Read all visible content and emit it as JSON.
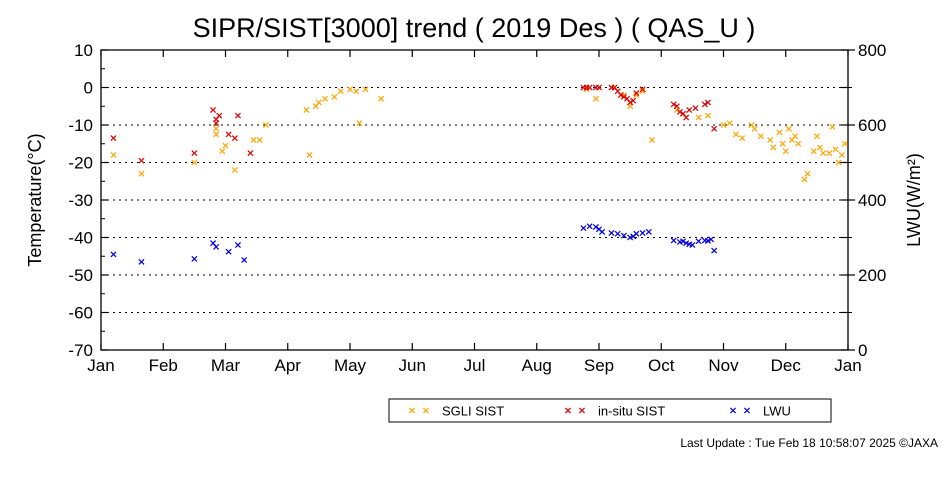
{
  "chart_data": {
    "type": "scatter",
    "title": "SIPR/SIST[3000] trend ( 2019 Des ) ( QAS_U )",
    "ylabel_left": "Temperature(°C)",
    "ylabel_right": "LWU(W/m²)",
    "ylim_left": [
      -70,
      10
    ],
    "ylim_right": [
      0,
      800
    ],
    "left_ticks": [
      "10",
      "0",
      "-10",
      "-20",
      "-30",
      "-40",
      "-50",
      "-60",
      "-70"
    ],
    "right_ticks": [
      "800",
      "600",
      "400",
      "200",
      "0"
    ],
    "grid_y_dotted": [
      0,
      -10,
      -20,
      -30,
      -40,
      -50,
      -60
    ],
    "x_domain_months": [
      0,
      12
    ],
    "months": [
      "Jan",
      "Feb",
      "Mar",
      "Apr",
      "May",
      "Jun",
      "Jul",
      "Aug",
      "Sep",
      "Oct",
      "Nov",
      "Dec",
      "Jan"
    ],
    "legend_placement": "bottom",
    "series": [
      {
        "name": "SGLI SIST",
        "color": "#ffa500",
        "axis": "left",
        "points": [
          [
            0.2,
            -18
          ],
          [
            0.65,
            -23
          ],
          [
            1.5,
            -20
          ],
          [
            1.85,
            -12.5
          ],
          [
            1.85,
            -11
          ],
          [
            1.95,
            -17
          ],
          [
            2.0,
            -15.5
          ],
          [
            2.15,
            -22
          ],
          [
            2.45,
            -14
          ],
          [
            2.55,
            -14
          ],
          [
            2.65,
            -10
          ],
          [
            3.3,
            -6
          ],
          [
            3.45,
            -5
          ],
          [
            3.5,
            -4
          ],
          [
            3.6,
            -3
          ],
          [
            3.75,
            -2.5
          ],
          [
            3.85,
            -1
          ],
          [
            4.0,
            -0.5
          ],
          [
            4.1,
            -1
          ],
          [
            4.15,
            -9.5
          ],
          [
            4.25,
            -0.5
          ],
          [
            4.5,
            -3
          ],
          [
            3.35,
            -18
          ],
          [
            7.8,
            -0.5
          ],
          [
            7.95,
            -3
          ],
          [
            8.25,
            0
          ],
          [
            8.4,
            -2
          ],
          [
            8.5,
            -5
          ],
          [
            8.6,
            -2
          ],
          [
            8.7,
            -1
          ],
          [
            8.85,
            -14
          ],
          [
            9.25,
            -6
          ],
          [
            9.35,
            -7
          ],
          [
            9.6,
            -8
          ],
          [
            9.75,
            -7.5
          ],
          [
            10.0,
            -10
          ],
          [
            10.1,
            -9.5
          ],
          [
            10.2,
            -12.5
          ],
          [
            10.3,
            -13.5
          ],
          [
            10.45,
            -10
          ],
          [
            10.5,
            -11
          ],
          [
            10.6,
            -13
          ],
          [
            10.75,
            -14
          ],
          [
            10.8,
            -16
          ],
          [
            10.9,
            -12
          ],
          [
            10.95,
            -15
          ],
          [
            11.0,
            -17
          ],
          [
            11.05,
            -11
          ],
          [
            11.1,
            -14
          ],
          [
            11.15,
            -13
          ],
          [
            11.2,
            -15
          ],
          [
            11.3,
            -24.5
          ],
          [
            11.35,
            -23
          ],
          [
            11.45,
            -17
          ],
          [
            11.5,
            -13
          ],
          [
            11.55,
            -16
          ],
          [
            11.6,
            -17.5
          ],
          [
            11.7,
            -17.5
          ],
          [
            11.75,
            -10.5
          ],
          [
            11.8,
            -16.5
          ],
          [
            11.85,
            -20
          ],
          [
            11.9,
            -18
          ],
          [
            11.95,
            -15
          ]
        ]
      },
      {
        "name": "in-situ SIST",
        "color": "#e00000",
        "axis": "left",
        "points": [
          [
            0.2,
            -13.5
          ],
          [
            0.65,
            -19.5
          ],
          [
            1.5,
            -17.5
          ],
          [
            1.8,
            -6
          ],
          [
            1.85,
            -8.5
          ],
          [
            1.85,
            -9.5
          ],
          [
            1.9,
            -7.5
          ],
          [
            2.05,
            -12.5
          ],
          [
            2.15,
            -13.5
          ],
          [
            2.2,
            -7.5
          ],
          [
            2.4,
            -17.5
          ],
          [
            7.75,
            0
          ],
          [
            7.8,
            0
          ],
          [
            7.85,
            0
          ],
          [
            7.95,
            0
          ],
          [
            8.0,
            0
          ],
          [
            8.2,
            0
          ],
          [
            8.25,
            0
          ],
          [
            8.3,
            -1
          ],
          [
            8.35,
            -2
          ],
          [
            8.4,
            -2.5
          ],
          [
            8.45,
            -3
          ],
          [
            8.5,
            -4
          ],
          [
            8.55,
            -3.5
          ],
          [
            8.6,
            -1.5
          ],
          [
            8.7,
            -0.5
          ],
          [
            9.2,
            -4.5
          ],
          [
            9.25,
            -5
          ],
          [
            9.3,
            -6.5
          ],
          [
            9.35,
            -7
          ],
          [
            9.4,
            -8
          ],
          [
            9.45,
            -6
          ],
          [
            9.55,
            -5.5
          ],
          [
            9.7,
            -4.5
          ],
          [
            9.75,
            -4
          ],
          [
            9.85,
            -11
          ]
        ]
      },
      {
        "name": "LWU",
        "color": "#0000e0",
        "axis": "right",
        "points": [
          [
            0.2,
            255
          ],
          [
            0.65,
            235
          ],
          [
            1.5,
            243
          ],
          [
            1.8,
            285
          ],
          [
            1.85,
            275
          ],
          [
            2.05,
            262
          ],
          [
            2.2,
            280
          ],
          [
            2.3,
            240
          ],
          [
            7.75,
            325
          ],
          [
            7.85,
            330
          ],
          [
            7.95,
            328
          ],
          [
            8.0,
            322
          ],
          [
            8.05,
            315
          ],
          [
            8.2,
            312
          ],
          [
            8.3,
            310
          ],
          [
            8.4,
            305
          ],
          [
            8.5,
            300
          ],
          [
            8.55,
            303
          ],
          [
            8.6,
            310
          ],
          [
            8.7,
            312
          ],
          [
            8.8,
            315
          ],
          [
            9.2,
            292
          ],
          [
            9.3,
            288
          ],
          [
            9.35,
            290
          ],
          [
            9.4,
            285
          ],
          [
            9.45,
            282
          ],
          [
            9.5,
            280
          ],
          [
            9.6,
            290
          ],
          [
            9.7,
            292
          ],
          [
            9.75,
            291
          ],
          [
            9.8,
            295
          ],
          [
            9.85,
            265
          ]
        ]
      }
    ]
  },
  "footer": {
    "last_update": "Last Update : Tue Feb 18 10:58:07 2025  ©JAXA"
  }
}
